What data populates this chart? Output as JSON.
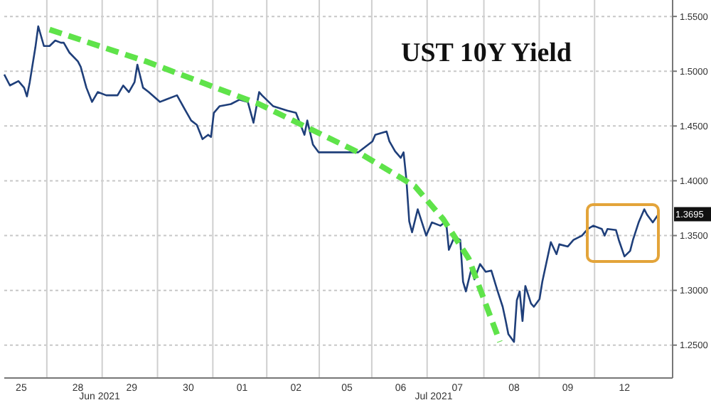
{
  "chart_data": {
    "type": "line",
    "title": "UST 10Y Yield",
    "categories": [
      null,
      null,
      null,
      null,
      null,
      null,
      "25",
      null,
      null,
      null,
      null,
      null,
      null,
      null,
      null,
      null,
      null,
      null,
      null,
      null,
      null,
      null,
      null,
      null,
      null,
      null,
      "28",
      null,
      null,
      null,
      null,
      null,
      null,
      null,
      null,
      null,
      null,
      null,
      null,
      null,
      null,
      null,
      null,
      null,
      null,
      "29",
      null,
      null,
      null,
      null,
      null,
      null,
      null,
      null,
      null,
      null,
      null,
      null,
      null,
      null,
      null,
      null,
      null,
      null,
      null,
      "30",
      null,
      null,
      null,
      null,
      null,
      null,
      null,
      null,
      null,
      null,
      null,
      null,
      null,
      null,
      null,
      null,
      null,
      null,
      "01",
      null,
      null,
      null,
      null,
      null,
      null,
      null,
      null,
      null,
      null,
      null,
      null,
      null,
      null,
      null,
      null,
      null,
      null,
      "02",
      null,
      null,
      null,
      null,
      null,
      null,
      null,
      null,
      null,
      null,
      null,
      null,
      null,
      null,
      null,
      null,
      null,
      "05",
      null,
      null,
      null,
      null,
      null,
      null,
      null,
      null,
      null,
      null,
      null,
      null,
      null,
      null,
      null,
      null,
      null,
      null,
      "06",
      null,
      null,
      null,
      null,
      null,
      null,
      null,
      null,
      null,
      null,
      null,
      null,
      null,
      null,
      null,
      null,
      null,
      null,
      null,
      "07",
      null,
      null,
      null,
      null,
      null,
      null,
      null,
      null,
      null,
      null,
      null,
      null,
      null,
      null,
      null,
      null,
      null,
      null,
      null,
      "08",
      null,
      null,
      null,
      null,
      null,
      null,
      null,
      null,
      null,
      null,
      null,
      null,
      null,
      null,
      null,
      null,
      null,
      null,
      "09",
      null,
      null,
      null,
      null,
      null,
      null,
      null,
      null,
      null,
      null,
      null,
      null,
      null,
      null,
      null,
      null,
      null,
      null,
      null,
      "12",
      null,
      null,
      null,
      null,
      null,
      null,
      null,
      null,
      null,
      null,
      null,
      null,
      null,
      null,
      null,
      null,
      null
    ],
    "ylim": [
      1.22,
      1.565
    ],
    "yticks": [
      {
        "value": 1.25,
        "label": "1.2500"
      },
      {
        "value": 1.3,
        "label": "1.3000"
      },
      {
        "value": 1.35,
        "label": "1.3500"
      },
      {
        "value": 1.4,
        "label": "1.4000"
      },
      {
        "value": 1.45,
        "label": "1.4500"
      },
      {
        "value": 1.5,
        "label": "1.5000"
      },
      {
        "value": 1.55,
        "label": "1.5500"
      }
    ],
    "grid": true,
    "legend": false,
    "marker": "none",
    "annotations": [
      "Jun 2021",
      "Jul 2021",
      "1.3695"
    ],
    "series": [
      {
        "color": "#1f3f7a",
        "line_style": "solid",
        "values": [
          1.497,
          null,
          1.487,
          null,
          null,
          1.491,
          null,
          1.485,
          1.477,
          1.49,
          null,
          1.522,
          1.541,
          null,
          1.523,
          null,
          1.523,
          null,
          1.528,
          null,
          1.526,
          1.526,
          null,
          1.517,
          null,
          null,
          1.509,
          1.504,
          null,
          1.485,
          null,
          1.472,
          null,
          1.481,
          null,
          null,
          1.478,
          null,
          null,
          null,
          1.478,
          null,
          1.487,
          null,
          1.481,
          null,
          1.49,
          1.506,
          null,
          1.485,
          null,
          1.481,
          null,
          null,
          null,
          1.472,
          null,
          1.474,
          null,
          null,
          null,
          1.478,
          null,
          null,
          1.464,
          null,
          1.455,
          null,
          1.451,
          null,
          1.438,
          null,
          1.442,
          1.44,
          1.462,
          null,
          1.468,
          null,
          null,
          null,
          1.47,
          null,
          null,
          1.474,
          null,
          null,
          1.472,
          null,
          1.453,
          null,
          1.481,
          1.478,
          null,
          null,
          null,
          1.468,
          null,
          null,
          null,
          null,
          1.464,
          null,
          null,
          1.462,
          null,
          null,
          1.442,
          1.455,
          null,
          1.433,
          null,
          1.426,
          null,
          null,
          null,
          null,
          null,
          null,
          null,
          null,
          null,
          null,
          null,
          null,
          null,
          1.426,
          null,
          null,
          null,
          null,
          1.436,
          1.442,
          null,
          null,
          null,
          1.445,
          1.436,
          null,
          1.427,
          null,
          1.421,
          1.426,
          1.401,
          1.363,
          1.353,
          null,
          1.374,
          null,
          null,
          1.35,
          null,
          1.362,
          null,
          null,
          1.359,
          null,
          1.363,
          1.337,
          null,
          1.349,
          null,
          1.346,
          1.308,
          1.299,
          null,
          1.32,
          1.31,
          null,
          1.324,
          null,
          1.317,
          null,
          1.318,
          null,
          1.301,
          null,
          1.285,
          1.273,
          1.26,
          null,
          1.253,
          1.291,
          1.299,
          1.272,
          1.304,
          null,
          1.288,
          1.285,
          null,
          1.292,
          1.308,
          1.32,
          null,
          1.344,
          null,
          1.333,
          1.342,
          null,
          null,
          1.34,
          null,
          1.346,
          null,
          null,
          1.35,
          null,
          1.356,
          null,
          1.359,
          null,
          null,
          1.356,
          1.35,
          1.356,
          null,
          null,
          1.355,
          1.346,
          null,
          1.331,
          null,
          1.336,
          1.346,
          null,
          1.362,
          null,
          1.374,
          1.369,
          null,
          1.362,
          null,
          1.3695,
          null,
          null,
          null,
          null,
          null
        ]
      },
      {
        "color": "#5fe34a",
        "line_style": "dashed",
        "values": [
          null,
          null,
          null,
          null,
          null,
          null,
          null,
          null,
          null,
          null,
          null,
          null,
          null,
          null,
          null,
          null,
          1.538,
          null,
          null,
          null,
          null,
          null,
          null,
          null,
          null,
          null,
          null,
          null,
          null,
          null,
          null,
          null,
          null,
          null,
          null,
          null,
          null,
          null,
          null,
          null,
          null,
          null,
          null,
          null,
          null,
          null,
          null,
          null,
          null,
          null,
          1.509,
          null,
          null,
          null,
          null,
          null,
          null,
          null,
          null,
          null,
          null,
          null,
          null,
          null,
          null,
          null,
          null,
          null,
          null,
          null,
          null,
          null,
          null,
          null,
          null,
          null,
          null,
          null,
          null,
          null,
          null,
          null,
          null,
          null,
          null,
          null,
          null,
          null,
          null,
          null,
          1.47,
          null,
          null,
          null,
          null,
          null,
          null,
          null,
          null,
          null,
          null,
          null,
          null,
          null,
          null,
          null,
          null,
          null,
          null,
          null,
          null,
          null,
          null,
          null,
          null,
          null,
          null,
          null,
          null,
          null,
          null,
          null,
          null,
          null,
          null,
          1.426,
          null,
          null,
          null,
          null,
          null,
          null,
          null,
          null,
          null,
          null,
          null,
          null,
          null,
          null,
          null,
          null,
          null,
          null,
          null,
          1.395,
          null,
          null,
          null,
          null,
          null,
          null,
          null,
          null,
          null,
          1.365,
          null,
          null,
          null,
          null,
          null,
          null,
          null,
          null,
          1.329,
          null,
          null,
          null,
          null,
          null,
          null,
          null,
          null,
          null,
          null,
          1.253,
          null,
          null,
          null,
          null,
          null,
          null,
          null,
          null,
          null,
          null,
          null,
          null,
          null,
          null,
          null,
          null,
          null,
          null,
          null,
          null,
          null,
          null,
          null,
          null,
          null,
          null,
          null,
          null,
          null,
          null,
          null,
          null,
          null,
          null,
          null,
          null,
          null,
          null,
          null,
          null,
          null,
          null,
          null,
          null,
          null,
          null,
          null,
          null,
          null,
          null,
          null,
          null,
          null,
          null,
          null,
          null,
          null,
          null,
          null,
          null,
          null
        ]
      }
    ]
  }
}
